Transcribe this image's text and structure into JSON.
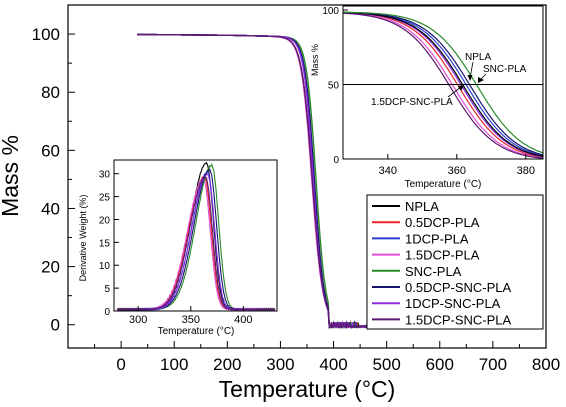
{
  "chart_data": [
    {
      "id": "main",
      "type": "line",
      "title": "",
      "xlabel": "Temperature (°C)",
      "ylabel": "Mass %",
      "xlim": [
        -100,
        800
      ],
      "ylim": [
        -8,
        110
      ],
      "xticks": [
        0,
        100,
        200,
        300,
        400,
        500,
        600,
        700,
        800
      ],
      "yticks": [
        0,
        20,
        40,
        60,
        80,
        100
      ],
      "grid": false,
      "legend_position": "lower-right",
      "series": [
        {
          "name": "NPLA",
          "color": "#000000",
          "onset": 363,
          "width": 9
        },
        {
          "name": "0.5DCP-PLA",
          "color": "#e8262b",
          "onset": 360,
          "width": 10
        },
        {
          "name": "1DCP-PLA",
          "color": "#2b3fd8",
          "onset": 362,
          "width": 9
        },
        {
          "name": "1.5DCP-PLA",
          "color": "#e34fd9",
          "onset": 359,
          "width": 10
        },
        {
          "name": "SNC-PLA",
          "color": "#2a8a2a",
          "onset": 367,
          "width": 9
        },
        {
          "name": "0.5DCP-SNC-PLA",
          "color": "#14146e",
          "onset": 364,
          "width": 9
        },
        {
          "name": "1DCP-SNC-PLA",
          "color": "#8a2be2",
          "onset": 362,
          "width": 9
        },
        {
          "name": "1.5DCP-SNC-PLA",
          "color": "#5c1a6e",
          "onset": 360,
          "width": 10
        }
      ]
    },
    {
      "id": "inset_zoom",
      "type": "line",
      "xlabel": "Temperature (°C)",
      "ylabel": "Mass %",
      "xlim": [
        327,
        385
      ],
      "ylim": [
        0,
        100
      ],
      "xticks": [
        340,
        360,
        380
      ],
      "yticks": [
        0,
        50,
        100
      ],
      "reference_line_y": 50,
      "annotations": [
        "NPLA",
        "SNC-PLA",
        "1.5DCP-SNC-PLA"
      ]
    },
    {
      "id": "inset_derivative",
      "type": "line",
      "xlabel": "Temperature (°C)",
      "ylabel": "Derivative Weight (%)",
      "xlim": [
        277,
        432
      ],
      "ylim": [
        0,
        33
      ],
      "xticks": [
        300,
        350,
        400
      ],
      "yticks": [
        0,
        5,
        10,
        15,
        20,
        25,
        30
      ],
      "peaks": [
        {
          "name": "NPLA",
          "peak_x": 365,
          "peak_y": 32
        },
        {
          "name": "0.5DCP-PLA",
          "peak_x": 363,
          "peak_y": 29
        },
        {
          "name": "1DCP-PLA",
          "peak_x": 366,
          "peak_y": 30
        },
        {
          "name": "1.5DCP-PLA",
          "peak_x": 362,
          "peak_y": 28.5
        },
        {
          "name": "SNC-PLA",
          "peak_x": 370,
          "peak_y": 31.5
        },
        {
          "name": "0.5DCP-SNC-PLA",
          "peak_x": 368,
          "peak_y": 30.5
        },
        {
          "name": "1DCP-SNC-PLA",
          "peak_x": 366,
          "peak_y": 29.5
        },
        {
          "name": "1.5DCP-SNC-PLA",
          "peak_x": 364,
          "peak_y": 29
        }
      ]
    }
  ]
}
